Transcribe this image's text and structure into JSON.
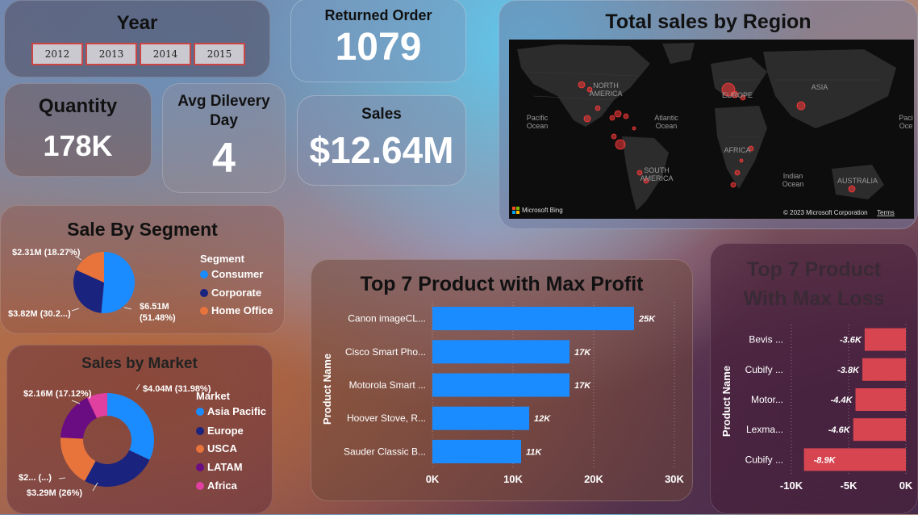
{
  "year_slicer": {
    "title": "Year",
    "options": [
      "2012",
      "2013",
      "2014",
      "2015"
    ]
  },
  "returned": {
    "title": "Returned Order",
    "value": "1079"
  },
  "quantity": {
    "title": "Quantity",
    "value": "178K"
  },
  "avg_delivery": {
    "title": "Avg Dilevery Day",
    "value": "4"
  },
  "sales": {
    "title": "Sales",
    "value": "$12.64M"
  },
  "map": {
    "title": "Total sales by Region",
    "labels": [
      "NORTH AMERICA",
      "EUROPE",
      "ASIA",
      "AFRICA",
      "SOUTH AMERICA",
      "AUSTRALIA",
      "Pacific Ocean",
      "Atlantic Ocean",
      "Indian Ocean"
    ],
    "brand": "Microsoft Bing",
    "copyright": "© 2023 Microsoft Corporation",
    "terms": "Terms"
  },
  "segment": {
    "title": "Sale By Segment",
    "legend_title": "Segment",
    "items": [
      {
        "name": "Consumer",
        "label": "$6.51M (51.48%)",
        "color": "#1a8cff"
      },
      {
        "name": "Corporate",
        "label": "$3.82M (30.2...)",
        "color": "#1a237e"
      },
      {
        "name": "Home Office",
        "label": "$2.31M (18.27%)",
        "color": "#e8743b"
      }
    ]
  },
  "market": {
    "title": "Sales by Market",
    "legend_title": "Market",
    "items": [
      {
        "name": "Asia Pacific",
        "label": "$4.04M (31.98%)",
        "color": "#1a8cff"
      },
      {
        "name": "Europe",
        "label": "$3.29M (26%)",
        "color": "#1a237e"
      },
      {
        "name": "USCA",
        "label": "$2... (...)",
        "color": "#e8743b"
      },
      {
        "name": "LATAM",
        "label": "$2.16M (17.12%)",
        "color": "#6a0d83"
      },
      {
        "name": "Africa",
        "label": "",
        "color": "#e040a0"
      }
    ]
  },
  "chart_data": [
    {
      "type": "bar",
      "title": "Top 7 Product with Max Profit",
      "ylabel": "Product Name",
      "categories": [
        "Canon imageCL...",
        "Cisco Smart Pho...",
        "Motorola Smart ...",
        "Hoover Stove, R...",
        "Sauder Classic B..."
      ],
      "values": [
        25000,
        17000,
        17000,
        12000,
        11000
      ],
      "data_labels": [
        "25K",
        "17K",
        "17K",
        "12K",
        "11K"
      ],
      "xlim": [
        0,
        30000
      ],
      "ticks": [
        "0K",
        "10K",
        "20K",
        "30K"
      ],
      "color": "#1a8cff"
    },
    {
      "type": "bar",
      "title": "Top 7 Product With Max Loss",
      "ylabel": "Product Name",
      "categories": [
        "Bevis ...",
        "Cubify ...",
        "Motor...",
        "Lexma...",
        "Cubify ..."
      ],
      "values": [
        -3600,
        -3800,
        -4400,
        -4600,
        -8900
      ],
      "data_labels": [
        "-3.6K",
        "-3.8K",
        "-4.4K",
        "-4.6K",
        "-8.9K"
      ],
      "xlim": [
        -10000,
        0
      ],
      "ticks": [
        "-10K",
        "-5K",
        "0K"
      ],
      "color": "#d64550"
    }
  ]
}
